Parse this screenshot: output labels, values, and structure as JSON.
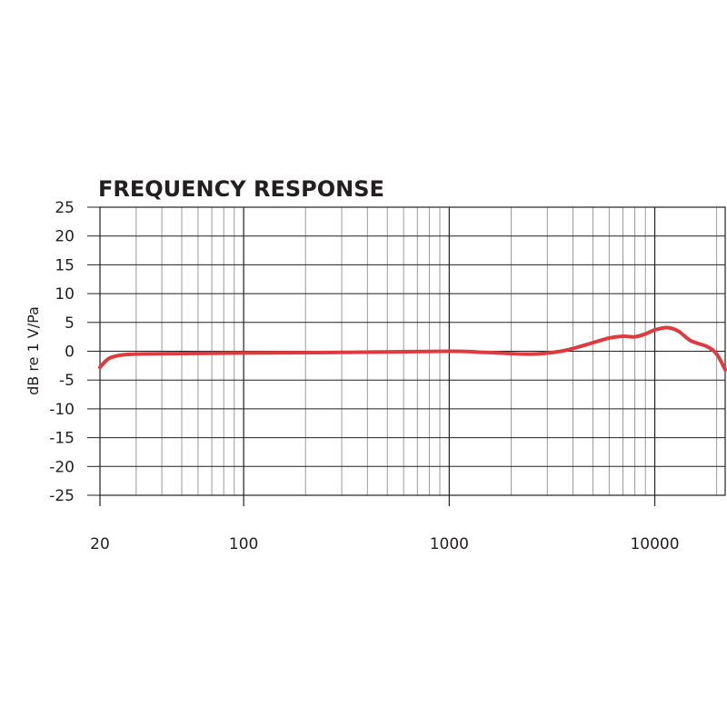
{
  "chart_data": {
    "type": "line",
    "title": "FREQUENCY RESPONSE",
    "xlabel": "",
    "ylabel": "dB re 1 V/Pa",
    "xscale": "log",
    "xlim": [
      20,
      22000
    ],
    "ylim": [
      -25,
      25
    ],
    "grid": true,
    "xticks": [
      20,
      100,
      1000,
      10000
    ],
    "xtick_labels": [
      "20",
      "100",
      "1000",
      "10000"
    ],
    "yticks": [
      25,
      20,
      15,
      10,
      5,
      0,
      -5,
      -10,
      -15,
      -20,
      -25
    ],
    "ytick_labels": [
      "25",
      "20",
      "15",
      "10",
      "5",
      "0",
      "-5",
      "-10",
      "-15",
      "-20",
      "-25"
    ],
    "series": [
      {
        "color": "#e03a3e",
        "x": [
          20,
          22,
          25,
          30,
          50,
          100,
          300,
          1000,
          1500,
          2500,
          3500,
          4500,
          6000,
          7000,
          8000,
          9000,
          10000,
          11500,
          13000,
          15000,
          18000,
          20000,
          22000
        ],
        "y": [
          -2.8,
          -1.3,
          -0.7,
          -0.5,
          -0.4,
          -0.3,
          -0.2,
          0,
          -0.2,
          -0.5,
          0,
          1,
          2.3,
          2.6,
          2.5,
          3,
          3.7,
          4.1,
          3.5,
          1.8,
          0.8,
          -0.5,
          -3.2
        ]
      }
    ]
  }
}
